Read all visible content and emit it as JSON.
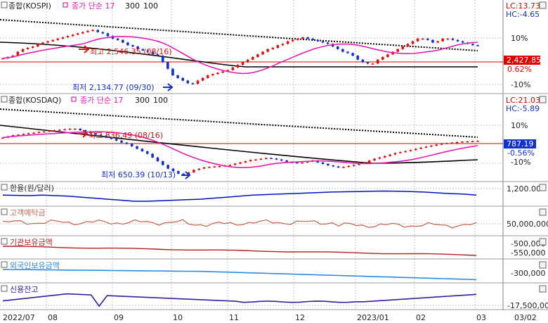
{
  "colors": {
    "up": "#e01010",
    "down": "#1030d0",
    "ma17": "#e020b0",
    "ma300": "#000000",
    "ref": "#e00000",
    "exch": "#0010c0",
    "deposit": "#c86a5a",
    "inst": "#b02020",
    "foreign": "#2a8ae0",
    "credit": "#3020a0",
    "grid": "#c8c8c8",
    "axis_bg": "#f0f0f0"
  },
  "panels": {
    "kospi": {
      "name": "종합(KOSPI)",
      "indicator": "종가 단순 17",
      "p1": "300",
      "p2": "100",
      "lc": "LC:13.73",
      "hc": "HC:-4.65",
      "price_box": "2,427.85",
      "pct": "0.62%",
      "tick_pos": "10%",
      "tick_neg": "-10%",
      "high_label": "최고 2,546.35 (08/16)",
      "low_label": "최저 2,134.77 (09/30)"
    },
    "kosdaq": {
      "name": "종합(KOSDAQ)",
      "indicator": "종가 단순 17",
      "p1": "300",
      "p2": "100",
      "lc": "LC:21.03",
      "hc": "HC:-5.89",
      "price_box": "787.19",
      "pct": "-0.56%",
      "tick_pos": "10%",
      "tick_neg": "-10%",
      "high_label": "최고 836.49 (08/16)",
      "low_label": "최저 650.39 (10/13)"
    },
    "exchange": {
      "name": "환율(원/달러)",
      "tick": "1,200.00"
    },
    "deposit": {
      "name": "고객예탁금",
      "tick": "50,000,000"
    },
    "institution": {
      "name": "기관보유금액",
      "tick1": "-500,000",
      "tick2": "-550,000"
    },
    "foreign": {
      "name": "외국인보유금액",
      "tick": "-300,000"
    },
    "credit": {
      "name": "신용잔고",
      "tick": "-17,500,000"
    }
  },
  "x_labels": [
    "2022/07",
    "08",
    "09",
    "10",
    "11",
    "12",
    "2023/01",
    "02",
    "03",
    "03/02"
  ],
  "chart_data": [
    {
      "type": "candlestick",
      "name": "종합(KOSPI)",
      "x_range": [
        "2022/07",
        "2023/03/02"
      ],
      "close": [
        2330,
        2340,
        2350,
        2380,
        2400,
        2410,
        2420,
        2440,
        2450,
        2460,
        2470,
        2480,
        2490,
        2500,
        2510,
        2520,
        2530,
        2540,
        2546,
        2530,
        2520,
        2500,
        2480,
        2470,
        2450,
        2430,
        2420,
        2400,
        2390,
        2380,
        2360,
        2350,
        2300,
        2250,
        2200,
        2180,
        2160,
        2140,
        2135,
        2160,
        2180,
        2200,
        2210,
        2220,
        2230,
        2240,
        2260,
        2280,
        2300,
        2320,
        2340,
        2360,
        2380,
        2400,
        2410,
        2430,
        2440,
        2460,
        2470,
        2480,
        2490,
        2480,
        2470,
        2460,
        2450,
        2440,
        2420,
        2400,
        2380,
        2370,
        2350,
        2320,
        2300,
        2290,
        2290,
        2320,
        2340,
        2360,
        2380,
        2400,
        2420,
        2440,
        2460,
        2480,
        2480,
        2470,
        2450,
        2460,
        2480,
        2480,
        2470,
        2460,
        2450,
        2440,
        2430,
        2427.85
      ],
      "ma_lines": [
        "종가 단순 17",
        "300",
        "100"
      ],
      "high": {
        "value": 2546.35,
        "date": "08/16"
      },
      "low": {
        "value": 2134.77,
        "date": "09/30"
      },
      "last": 2427.85,
      "change_pct": 0.62,
      "y_ticks": [
        "10%",
        "-10%"
      ]
    },
    {
      "type": "candlestick",
      "name": "종합(KOSDAQ)",
      "close": [
        800,
        805,
        810,
        812,
        815,
        818,
        820,
        823,
        825,
        828,
        830,
        832,
        834,
        836,
        836,
        830,
        825,
        818,
        812,
        808,
        800,
        795,
        788,
        780,
        775,
        765,
        755,
        745,
        735,
        720,
        705,
        690,
        675,
        665,
        655,
        651,
        660,
        670,
        675,
        680,
        682,
        684,
        685,
        688,
        690,
        695,
        700,
        705,
        710,
        712,
        715,
        718,
        716,
        712,
        708,
        702,
        700,
        698,
        700,
        704,
        708,
        700,
        694,
        688,
        684,
        680,
        682,
        686,
        690,
        696,
        700,
        708,
        715,
        720,
        726,
        732,
        738,
        742,
        746,
        750,
        755,
        760,
        764,
        768,
        772,
        776,
        778,
        780,
        782,
        784,
        785,
        786,
        787.19
      ],
      "high": {
        "value": 836.49,
        "date": "08/16"
      },
      "low": {
        "value": 650.39,
        "date": "10/13"
      },
      "last": 787.19,
      "change_pct": -0.56,
      "y_ticks": [
        "10%",
        "-10%"
      ]
    },
    {
      "type": "line",
      "name": "환율(원/달러)",
      "values": [
        1300,
        1305,
        1310,
        1300,
        1310,
        1320,
        1340,
        1360,
        1380,
        1400,
        1420,
        1420,
        1410,
        1400,
        1390,
        1380,
        1360,
        1340,
        1320,
        1300,
        1290,
        1280,
        1270,
        1260,
        1250,
        1240,
        1235,
        1230,
        1225,
        1220,
        1225,
        1232,
        1240,
        1255,
        1270,
        1280,
        1300
      ],
      "y_ticks": [
        "1,200.00"
      ]
    },
    {
      "type": "line",
      "name": "고객예탁금",
      "y_ticks": [
        "50,000,000"
      ]
    },
    {
      "type": "line",
      "name": "기관보유금액",
      "y_ticks": [
        "-500,000",
        "-550,000"
      ]
    },
    {
      "type": "line",
      "name": "외국인보유금액",
      "y_ticks": [
        "-300,000"
      ]
    },
    {
      "type": "line",
      "name": "신용잔고",
      "y_ticks": [
        "-17,500,000"
      ]
    }
  ]
}
